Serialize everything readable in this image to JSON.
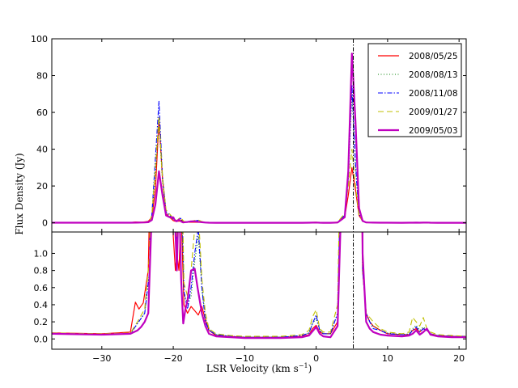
{
  "chart_data": {
    "type": "line",
    "xlabel": "LSR Velocity (km s",
    "xlabel_sup": "−1",
    "xlabel_close": ")",
    "ylabel": "Flux Density (Jy)",
    "xlim": [
      -37,
      21
    ],
    "x_ticks": [
      -30,
      -20,
      -10,
      0,
      10,
      20
    ],
    "x_tick_labels": [
      "−30",
      "−20",
      "−10",
      "0",
      "10",
      "20"
    ],
    "reference_velocity": 5.2,
    "legend_position": "top-right",
    "panels": [
      {
        "name": "top",
        "ylim": [
          -5,
          100
        ],
        "y_ticks": [
          0,
          20,
          40,
          60,
          80,
          100
        ],
        "y_tick_labels": [
          "0",
          "20",
          "40",
          "60",
          "80",
          "100"
        ]
      },
      {
        "name": "bottom",
        "ylim": [
          -0.12,
          1.25
        ],
        "y_ticks": [
          0.0,
          0.2,
          0.4,
          0.6,
          0.8,
          1.0
        ],
        "y_tick_labels": [
          "0.0",
          "0.2",
          "0.4",
          "0.6",
          "0.8",
          "1.0"
        ]
      }
    ],
    "series": [
      {
        "name": "2008/05/25",
        "color": "#ff0000",
        "dash": "solid",
        "width": 1.2,
        "x": [
          -37,
          -30,
          -26,
          -25.3,
          -24.8,
          -24.2,
          -23.5,
          -23,
          -22.5,
          -22,
          -21.5,
          -21,
          -20.5,
          -20,
          -19.7,
          -19.5,
          -19.2,
          -18.9,
          -18.5,
          -18,
          -17.5,
          -17,
          -16.5,
          -16,
          -15.5,
          -15,
          -14,
          -12,
          -10,
          -5,
          -2,
          -1,
          -0.5,
          0,
          0.5,
          1,
          2,
          3,
          4,
          4.5,
          5,
          5.5,
          6,
          6.5,
          7,
          7.5,
          8,
          9,
          10,
          12,
          13,
          13.5,
          14,
          14.5,
          15,
          15.5,
          16,
          17,
          19,
          21
        ],
        "y": [
          0.07,
          0.06,
          0.08,
          0.43,
          0.35,
          0.42,
          0.8,
          3,
          18,
          56,
          24,
          5,
          3,
          1.2,
          0.8,
          1.0,
          0.8,
          1.5,
          0.4,
          0.3,
          0.38,
          0.33,
          0.28,
          0.38,
          0.22,
          0.1,
          0.04,
          0.03,
          0.02,
          0.02,
          0.03,
          0.05,
          0.12,
          0.16,
          0.08,
          0.06,
          0.06,
          0.2,
          3,
          15,
          30,
          18,
          4,
          0.8,
          0.3,
          0.2,
          0.15,
          0.1,
          0.06,
          0.05,
          0.05,
          0.1,
          0.12,
          0.08,
          0.12,
          0.1,
          0.06,
          0.04,
          0.03,
          0.03
        ]
      },
      {
        "name": "2008/08/13",
        "color": "#008000",
        "dash": "1,2.5",
        "width": 1.1,
        "x": [
          -37,
          -30,
          -26,
          -25,
          -24,
          -23.3,
          -23,
          -22.5,
          -22,
          -21.5,
          -21,
          -20,
          -19.5,
          -19,
          -18.5,
          -18,
          -17.5,
          -17,
          -16.5,
          -16,
          -15.5,
          -15,
          -14,
          -12,
          -10,
          -5,
          -2,
          -1,
          -0.5,
          0,
          0.5,
          1,
          2,
          3,
          4,
          4.5,
          5,
          5.5,
          6,
          6.5,
          7,
          7.5,
          8,
          9,
          10,
          12,
          13,
          13.5,
          14,
          14.5,
          15,
          15.5,
          16,
          17,
          19,
          21
        ],
        "y": [
          0.06,
          0.05,
          0.06,
          0.18,
          0.3,
          0.8,
          3,
          25,
          55,
          22,
          6,
          2,
          1,
          2,
          0.55,
          0.4,
          0.5,
          0.9,
          1.2,
          0.6,
          0.25,
          0.12,
          0.05,
          0.03,
          0.02,
          0.02,
          0.04,
          0.07,
          0.18,
          0.24,
          0.1,
          0.06,
          0.06,
          0.3,
          4,
          22,
          70,
          30,
          5,
          0.8,
          0.3,
          0.2,
          0.15,
          0.1,
          0.07,
          0.05,
          0.06,
          0.12,
          0.16,
          0.1,
          0.14,
          0.1,
          0.06,
          0.04,
          0.03,
          0.03
        ]
      },
      {
        "name": "2008/11/08",
        "color": "#0000ff",
        "dash": "6,2,1.5,2",
        "width": 1.1,
        "x": [
          -37,
          -30,
          -26,
          -25,
          -24,
          -23.3,
          -23,
          -22.5,
          -22,
          -21.5,
          -21,
          -20,
          -19.5,
          -19,
          -18.5,
          -18,
          -17.5,
          -17,
          -16.5,
          -16,
          -15.5,
          -15,
          -14,
          -12,
          -10,
          -5,
          -2,
          -1,
          -0.5,
          0,
          0.5,
          1,
          2,
          3,
          4,
          4.5,
          5,
          5.5,
          6,
          6.5,
          7,
          7.5,
          8,
          9,
          10,
          12,
          13,
          13.5,
          14,
          14.5,
          15,
          15.5,
          16,
          17,
          19,
          21
        ],
        "y": [
          0.06,
          0.05,
          0.06,
          0.18,
          0.3,
          0.8,
          4,
          35,
          66,
          25,
          6,
          2,
          1.1,
          2.5,
          0.55,
          0.35,
          0.6,
          1.0,
          1.3,
          0.6,
          0.2,
          0.1,
          0.05,
          0.03,
          0.02,
          0.02,
          0.04,
          0.07,
          0.18,
          0.28,
          0.1,
          0.06,
          0.06,
          0.3,
          4,
          24,
          75,
          32,
          5,
          0.8,
          0.3,
          0.2,
          0.12,
          0.1,
          0.06,
          0.05,
          0.05,
          0.1,
          0.14,
          0.08,
          0.12,
          0.1,
          0.06,
          0.04,
          0.03,
          0.03
        ]
      },
      {
        "name": "2009/01/27",
        "color": "#bfbf00",
        "dash": "7,4",
        "width": 1.1,
        "x": [
          -37,
          -30,
          -26,
          -25,
          -24,
          -23.3,
          -23,
          -22.5,
          -22,
          -21.5,
          -21,
          -20,
          -19.5,
          -19,
          -18.5,
          -18,
          -17.5,
          -17,
          -16.5,
          -16,
          -15.5,
          -15,
          -14,
          -12,
          -10,
          -5,
          -2,
          -1,
          -0.5,
          0,
          0.5,
          1,
          2,
          3,
          4,
          4.5,
          5,
          5.5,
          6,
          6.5,
          7,
          7.5,
          8,
          9,
          10,
          12,
          13,
          13.5,
          14,
          14.5,
          15,
          15.5,
          16,
          17,
          19,
          21
        ],
        "y": [
          0.07,
          0.06,
          0.07,
          0.2,
          0.35,
          1.0,
          4,
          30,
          58,
          24,
          7,
          2.5,
          1.2,
          3,
          0.65,
          0.5,
          0.8,
          1.3,
          1.5,
          0.7,
          0.3,
          0.12,
          0.06,
          0.04,
          0.03,
          0.03,
          0.05,
          0.1,
          0.26,
          0.34,
          0.12,
          0.08,
          0.08,
          0.4,
          5,
          20,
          40,
          20,
          4,
          0.9,
          0.3,
          0.25,
          0.2,
          0.12,
          0.08,
          0.06,
          0.08,
          0.25,
          0.2,
          0.15,
          0.25,
          0.12,
          0.08,
          0.05,
          0.04,
          0.03
        ]
      },
      {
        "name": "2009/05/03",
        "color": "#bf00bf",
        "dash": "solid",
        "width": 2.2,
        "x": [
          -37,
          -30,
          -26,
          -25,
          -24.5,
          -24,
          -23.5,
          -23,
          -22.5,
          -22,
          -21.5,
          -21,
          -20.5,
          -20,
          -19.8,
          -19.5,
          -19.2,
          -18.9,
          -18.6,
          -18.3,
          -18,
          -17.5,
          -17,
          -16.6,
          -16,
          -15.5,
          -15,
          -14,
          -12,
          -10,
          -5,
          -2,
          -1,
          -0.5,
          0,
          0.5,
          1,
          2,
          3,
          4,
          4.5,
          5,
          5.5,
          6,
          6.5,
          7,
          7.5,
          8,
          9,
          10,
          12,
          13,
          13.5,
          14,
          14.5,
          15,
          15.5,
          16,
          17,
          19,
          21
        ],
        "y": [
          0.06,
          0.05,
          0.06,
          0.1,
          0.14,
          0.2,
          0.3,
          1.5,
          10,
          28,
          15,
          4,
          3,
          3,
          1.5,
          0.8,
          1.8,
          0.7,
          0.18,
          0.35,
          0.45,
          0.8,
          0.82,
          0.6,
          0.3,
          0.15,
          0.06,
          0.03,
          0.02,
          0.01,
          0.01,
          0.02,
          0.04,
          0.09,
          0.14,
          0.06,
          0.03,
          0.02,
          0.15,
          3,
          28,
          92,
          55,
          8,
          1,
          0.2,
          0.12,
          0.08,
          0.05,
          0.04,
          0.03,
          0.04,
          0.06,
          0.1,
          0.05,
          0.08,
          0.12,
          0.05,
          0.03,
          0.02,
          0.02
        ]
      }
    ]
  }
}
